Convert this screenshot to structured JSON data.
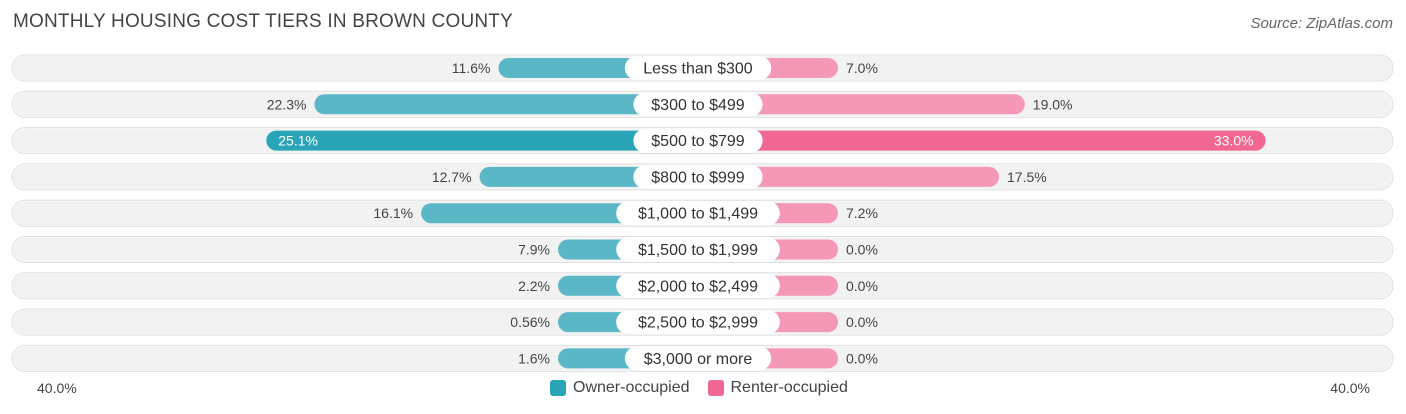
{
  "header": {
    "title": "MONTHLY HOUSING COST TIERS IN BROWN COUNTY",
    "source": "Source: ZipAtlas.com"
  },
  "axis": {
    "left_label": "40.0%",
    "right_label": "40.0%"
  },
  "legend": {
    "owner_label": "Owner-occupied",
    "renter_label": "Renter-occupied"
  },
  "colors": {
    "owner": "#5ab8c6",
    "owner_strong": "#2aa5b7",
    "renter": "#f598b5",
    "renter_strong": "#f06792",
    "row_bg": "#f2f2f2"
  },
  "chart_data": {
    "type": "bar",
    "orientation": "horizontal-diverging",
    "categories": [
      "Less than $300",
      "$300 to $499",
      "$500 to $799",
      "$800 to $999",
      "$1,000 to $1,499",
      "$1,500 to $1,999",
      "$2,000 to $2,499",
      "$2,500 to $2,999",
      "$3,000 or more"
    ],
    "series": [
      {
        "name": "Owner-occupied",
        "values": [
          11.6,
          22.3,
          25.1,
          12.7,
          16.1,
          7.9,
          2.2,
          0.56,
          1.6
        ],
        "labels": [
          "11.6%",
          "22.3%",
          "25.1%",
          "12.7%",
          "16.1%",
          "7.9%",
          "2.2%",
          "0.56%",
          "1.6%"
        ]
      },
      {
        "name": "Renter-occupied",
        "values": [
          7.0,
          19.0,
          33.0,
          17.5,
          7.2,
          0.0,
          0.0,
          0.0,
          0.0
        ],
        "labels": [
          "7.0%",
          "19.0%",
          "33.0%",
          "17.5%",
          "7.2%",
          "0.0%",
          "0.0%",
          "0.0%",
          "0.0%"
        ]
      }
    ],
    "xlim": [
      -40,
      40
    ],
    "title": "MONTHLY HOUSING COST TIERS IN BROWN COUNTY",
    "legend_position": "bottom-center"
  }
}
